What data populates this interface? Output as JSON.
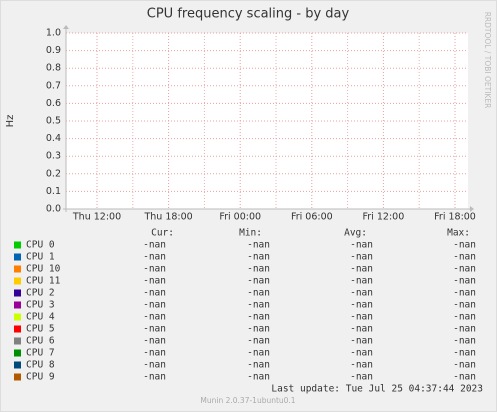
{
  "chart_data": {
    "type": "line",
    "title": "CPU frequency scaling - by day",
    "ylabel": "Hz",
    "side_text": "RRDTOOL / TOBI OETIKER",
    "ylim": [
      0,
      1
    ],
    "yticks": [
      {
        "value": 0,
        "label": "0.0"
      },
      0.1,
      0.2,
      0.3,
      0.4,
      0.5,
      0.6,
      0.7,
      0.8,
      0.9,
      {
        "value": 1,
        "label": "1.0"
      }
    ],
    "categories": [
      "Thu 12:00",
      "Thu 18:00",
      "Fri 00:00",
      "Fri 06:00",
      "Fri 12:00",
      "Fri 18:00"
    ],
    "grid": true,
    "legend_columns": [
      "Cur:",
      "Min:",
      "Avg:",
      "Max:"
    ],
    "series": [
      {
        "name": "CPU 0",
        "color": "#00cc00",
        "stats": [
          "-nan",
          "-nan",
          "-nan",
          "-nan"
        ]
      },
      {
        "name": "CPU 1",
        "color": "#0066b3",
        "stats": [
          "-nan",
          "-nan",
          "-nan",
          "-nan"
        ]
      },
      {
        "name": "CPU 10",
        "color": "#ff8000",
        "stats": [
          "-nan",
          "-nan",
          "-nan",
          "-nan"
        ]
      },
      {
        "name": "CPU 11",
        "color": "#ffcc00",
        "stats": [
          "-nan",
          "-nan",
          "-nan",
          "-nan"
        ]
      },
      {
        "name": "CPU 2",
        "color": "#330099",
        "stats": [
          "-nan",
          "-nan",
          "-nan",
          "-nan"
        ]
      },
      {
        "name": "CPU 3",
        "color": "#990099",
        "stats": [
          "-nan",
          "-nan",
          "-nan",
          "-nan"
        ]
      },
      {
        "name": "CPU 4",
        "color": "#ccff00",
        "stats": [
          "-nan",
          "-nan",
          "-nan",
          "-nan"
        ]
      },
      {
        "name": "CPU 5",
        "color": "#ff0000",
        "stats": [
          "-nan",
          "-nan",
          "-nan",
          "-nan"
        ]
      },
      {
        "name": "CPU 6",
        "color": "#808080",
        "stats": [
          "-nan",
          "-nan",
          "-nan",
          "-nan"
        ]
      },
      {
        "name": "CPU 7",
        "color": "#008f00",
        "stats": [
          "-nan",
          "-nan",
          "-nan",
          "-nan"
        ]
      },
      {
        "name": "CPU 8",
        "color": "#00487d",
        "stats": [
          "-nan",
          "-nan",
          "-nan",
          "-nan"
        ]
      },
      {
        "name": "CPU 9",
        "color": "#b35a00",
        "stats": [
          "-nan",
          "-nan",
          "-nan",
          "-nan"
        ]
      }
    ],
    "last_update": "Last update: Tue Jul 25 04:37:44 2023",
    "footer": "Munin 2.0.37-1ubuntu0.1"
  }
}
